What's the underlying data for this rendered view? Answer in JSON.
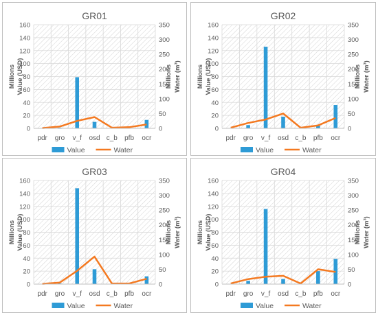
{
  "chart_data": [
    {
      "type": "bar",
      "title": "GR01",
      "categories": [
        "pdr",
        "gro",
        "v_f",
        "osd",
        "c_b",
        "pfb",
        "ocr"
      ],
      "ylabel": "Value (USD)",
      "ylabel_unit": "Millions",
      "y2label": "Water (m³)",
      "y2label_unit": "Millions",
      "ylim": [
        0,
        160
      ],
      "y2lim": [
        0,
        350
      ],
      "yticks": [
        "0",
        "20",
        "40",
        "60",
        "80",
        "100",
        "120",
        "140",
        "160"
      ],
      "y2ticks": [
        "0",
        "50",
        "100",
        "150",
        "200",
        "250",
        "300",
        "350"
      ],
      "series": [
        {
          "name": "Value",
          "type": "bar",
          "axis": "left",
          "values": [
            0,
            1,
            79,
            10,
            0,
            0.5,
            13
          ]
        },
        {
          "name": "Water",
          "type": "line",
          "axis": "right",
          "values": [
            1,
            6,
            25,
            38,
            2,
            4,
            13
          ]
        }
      ],
      "legend_position": "bottom",
      "grid": true
    },
    {
      "type": "bar",
      "title": "GR02",
      "categories": [
        "pdr",
        "gro",
        "v_f",
        "osd",
        "c_b",
        "pfb",
        "ocr"
      ],
      "ylabel": "Value (USD)",
      "ylabel_unit": "Millions",
      "y2label": "Water (m³)",
      "y2label_unit": "Millions",
      "ylim": [
        0,
        160
      ],
      "y2lim": [
        0,
        350
      ],
      "yticks": [
        "0",
        "20",
        "40",
        "60",
        "80",
        "100",
        "120",
        "140",
        "160"
      ],
      "y2ticks": [
        "0",
        "50",
        "100",
        "150",
        "200",
        "250",
        "300",
        "350"
      ],
      "series": [
        {
          "name": "Value",
          "type": "bar",
          "axis": "left",
          "values": [
            0,
            5,
            126,
            18,
            0,
            4,
            36
          ]
        },
        {
          "name": "Water",
          "type": "line",
          "axis": "right",
          "values": [
            2,
            18,
            30,
            50,
            2,
            10,
            35
          ]
        }
      ],
      "legend_position": "bottom",
      "grid": true
    },
    {
      "type": "bar",
      "title": "GR03",
      "categories": [
        "pdr",
        "gro",
        "v_f",
        "osd",
        "c_b",
        "pfb",
        "ocr"
      ],
      "ylabel": "Value (USD)",
      "ylabel_unit": "Millions",
      "y2label": "Water (m³)",
      "y2label_unit": "Millions",
      "ylim": [
        0,
        160
      ],
      "y2lim": [
        0,
        350
      ],
      "yticks": [
        "0",
        "20",
        "40",
        "60",
        "80",
        "100",
        "120",
        "140",
        "160"
      ],
      "y2ticks": [
        "0",
        "50",
        "100",
        "150",
        "200",
        "250",
        "300",
        "350"
      ],
      "series": [
        {
          "name": "Value",
          "type": "bar",
          "axis": "left",
          "values": [
            0,
            1,
            148,
            23,
            0,
            0.5,
            12
          ]
        },
        {
          "name": "Water",
          "type": "line",
          "axis": "right",
          "values": [
            1,
            5,
            45,
            93,
            2,
            2,
            18
          ]
        }
      ],
      "legend_position": "bottom",
      "grid": true
    },
    {
      "type": "bar",
      "title": "GR04",
      "categories": [
        "pdr",
        "gro",
        "v_f",
        "osd",
        "c_b",
        "pfb",
        "ocr"
      ],
      "ylabel": "Value (USD)",
      "ylabel_unit": "Millions",
      "y2label": "Water (m³)",
      "y2label_unit": "Millions",
      "ylim": [
        0,
        160
      ],
      "y2lim": [
        0,
        350
      ],
      "yticks": [
        "0",
        "20",
        "40",
        "60",
        "80",
        "100",
        "120",
        "140",
        "160"
      ],
      "y2ticks": [
        "0",
        "50",
        "100",
        "150",
        "200",
        "250",
        "300",
        "350"
      ],
      "series": [
        {
          "name": "Value",
          "type": "bar",
          "axis": "left",
          "values": [
            0,
            5,
            116,
            8,
            0,
            20,
            39
          ]
        },
        {
          "name": "Water",
          "type": "line",
          "axis": "right",
          "values": [
            2,
            17,
            25,
            28,
            2,
            50,
            41
          ]
        }
      ],
      "legend_position": "bottom",
      "grid": true
    }
  ],
  "colors": {
    "bar": "#2e9bd6",
    "line": "#f47920",
    "grid": "#d9d9d9",
    "hatch": "#c8c8c8",
    "axis_text": "#595959"
  }
}
